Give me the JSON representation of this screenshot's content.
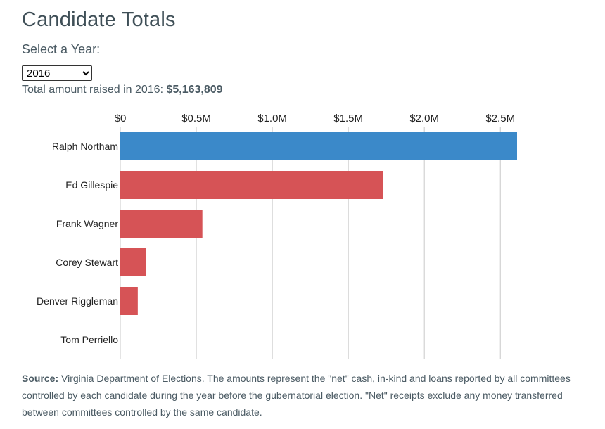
{
  "title": "Candidate Totals",
  "year_selector": {
    "label": "Select a Year:",
    "selected": "2016",
    "options": [
      "2016"
    ]
  },
  "total_line": {
    "prefix": "Total amount raised in 2016:",
    "amount": "$5,163,809"
  },
  "chart_data": {
    "type": "bar",
    "orientation": "horizontal",
    "categories": [
      "Ralph Northam",
      "Ed Gillespie",
      "Frank Wagner",
      "Corey Stewart",
      "Denver Riggleman",
      "Tom Perriello"
    ],
    "values": [
      2610000,
      1730000,
      540000,
      170000,
      115000,
      0
    ],
    "bar_parties": [
      "democrat",
      "republican",
      "republican",
      "republican",
      "republican",
      "democrat"
    ],
    "xlim": [
      0,
      2750000
    ],
    "xticks": [
      0,
      500000,
      1000000,
      1500000,
      2000000,
      2500000
    ],
    "xtick_labels": [
      "$0",
      "$0.5M",
      "$1.0M",
      "$1.5M",
      "$2.0M",
      "$2.5M"
    ],
    "axis_position": "top",
    "grid": true,
    "colors": {
      "democrat": "#3b89c9",
      "republican": "#d65356",
      "grid": "#c8c8c8"
    }
  },
  "source": {
    "label": "Source:",
    "text": " Virginia Department of Elections. The amounts represent the \"net\" cash, in-kind and loans reported by all committees controlled by each candidate during the year before the gubernatorial election. \"Net\" receipts exclude any money transferred between committees controlled by the same candidate."
  }
}
